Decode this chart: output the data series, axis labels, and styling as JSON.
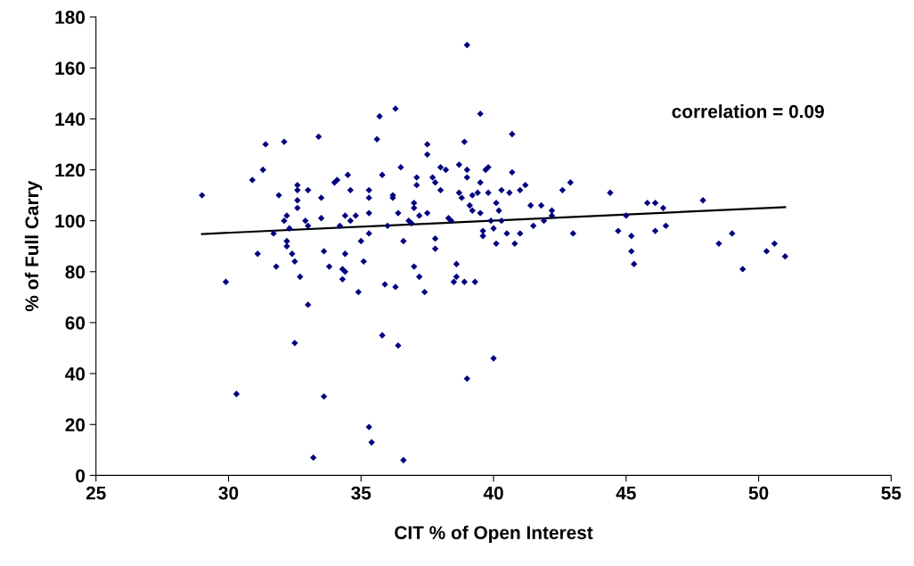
{
  "chart_data": {
    "type": "scatter",
    "xlabel": "CIT % of Open Interest",
    "ylabel": "% of Full Carry",
    "annotations": [
      "correlation = 0.09"
    ],
    "xlim": [
      25,
      55
    ],
    "xticks": [
      25,
      30,
      35,
      40,
      45,
      50,
      55
    ],
    "ylim": [
      0,
      180
    ],
    "yticks": [
      0,
      20,
      40,
      60,
      80,
      100,
      120,
      140,
      160,
      180
    ],
    "grid": false,
    "legend": false,
    "marker": "diamond",
    "series": [
      {
        "color": "#000080",
        "x": [
          29.0,
          29.9,
          30.3,
          30.9,
          31.1,
          31.3,
          31.4,
          31.7,
          31.8,
          31.9,
          32.1,
          32.1,
          32.2,
          32.2,
          32.2,
          32.3,
          32.4,
          32.5,
          32.5,
          32.6,
          32.6,
          32.6,
          32.6,
          32.7,
          32.9,
          33.0,
          33.0,
          33.0,
          33.2,
          33.4,
          33.5,
          33.5,
          33.6,
          33.6,
          33.8,
          34.0,
          34.1,
          34.2,
          34.3,
          34.3,
          34.4,
          34.4,
          34.4,
          34.5,
          34.6,
          34.6,
          34.8,
          34.9,
          35.0,
          35.1,
          35.3,
          35.3,
          35.3,
          35.3,
          35.3,
          35.4,
          35.6,
          35.7,
          35.8,
          35.8,
          35.9,
          36.0,
          36.2,
          36.2,
          36.3,
          36.3,
          36.4,
          36.4,
          36.5,
          36.6,
          36.6,
          36.8,
          36.9,
          37.0,
          37.0,
          37.0,
          37.1,
          37.1,
          37.2,
          37.2,
          37.4,
          37.5,
          37.5,
          37.5,
          37.7,
          37.8,
          37.8,
          37.8,
          38.0,
          38.0,
          38.2,
          38.3,
          38.4,
          38.5,
          38.6,
          38.6,
          38.7,
          38.7,
          38.8,
          38.9,
          38.9,
          39.0,
          39.0,
          39.0,
          39.0,
          39.1,
          39.2,
          39.2,
          39.3,
          39.4,
          39.5,
          39.5,
          39.5,
          39.6,
          39.6,
          39.7,
          39.8,
          39.8,
          39.9,
          40.0,
          40.0,
          40.1,
          40.1,
          40.2,
          40.3,
          40.3,
          40.5,
          40.6,
          40.7,
          40.7,
          40.8,
          41.0,
          41.0,
          41.2,
          41.4,
          41.5,
          41.8,
          41.9,
          42.2,
          42.2,
          42.6,
          42.9,
          43.0,
          44.4,
          44.7,
          45.0,
          45.2,
          45.2,
          45.3,
          45.8,
          46.1,
          46.1,
          46.4,
          46.5,
          47.9,
          48.5,
          49.0,
          49.4,
          50.3,
          50.6,
          51.0
        ],
        "values": [
          110,
          76,
          32,
          116,
          87,
          120,
          130,
          95,
          82,
          110,
          131,
          100,
          102,
          92,
          90,
          97,
          87,
          84,
          52,
          114,
          112,
          108,
          105,
          78,
          100,
          112,
          98,
          67,
          7,
          133,
          109,
          101,
          88,
          31,
          82,
          115,
          116,
          98,
          81,
          77,
          80,
          102,
          87,
          118,
          112,
          100,
          102,
          72,
          92,
          84,
          112,
          109,
          95,
          103,
          19,
          13,
          132,
          141,
          118,
          55,
          75,
          98,
          110,
          109,
          144,
          74,
          51,
          103,
          121,
          6,
          92,
          100,
          99,
          107,
          105,
          82,
          117,
          114,
          102,
          78,
          72,
          130,
          126,
          103,
          117,
          115,
          93,
          89,
          121,
          112,
          120,
          101,
          100,
          76,
          83,
          78,
          122,
          111,
          109,
          131,
          76,
          169,
          120,
          117,
          38,
          106,
          110,
          104,
          76,
          111,
          142,
          115,
          103,
          96,
          94,
          120,
          121,
          111,
          100,
          97,
          46,
          107,
          91,
          104,
          112,
          100,
          95,
          111,
          134,
          119,
          91,
          95,
          112,
          114,
          106,
          98,
          106,
          100,
          104,
          102,
          112,
          115,
          95,
          111,
          96,
          102,
          94,
          88,
          83,
          107,
          107,
          96,
          105,
          98,
          108,
          91,
          95,
          81,
          88,
          91,
          86
        ]
      },
      {
        "type": "line",
        "color": "#000000",
        "marker": "none",
        "x": [
          29.0,
          51.0
        ],
        "values": [
          94.8,
          105.3
        ]
      }
    ]
  }
}
